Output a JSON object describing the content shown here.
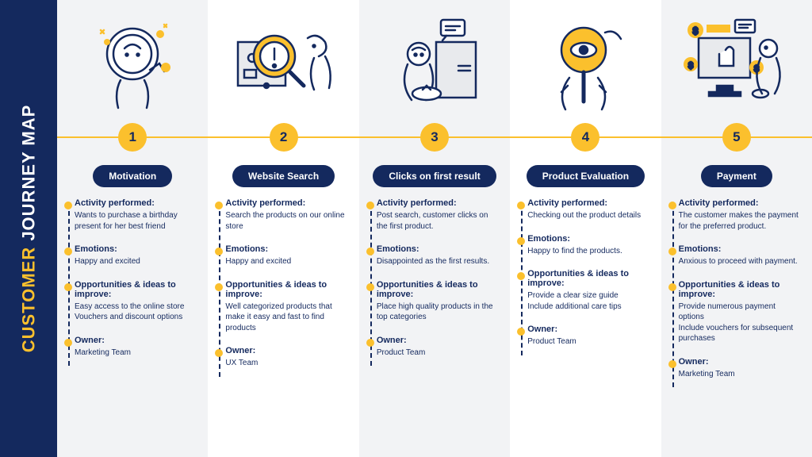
{
  "title": {
    "customer": "CUSTOMER",
    "journey": " JOURNEY MAP"
  },
  "colors": {
    "navy": "#14295e",
    "yellow": "#fbc02d",
    "grey": "#f2f3f5"
  },
  "labels": {
    "activity": "Activity performed:",
    "emotions": "Emotions:",
    "opportunities": "Opportunities & ideas to improve:",
    "owner": "Owner:"
  },
  "stages": [
    {
      "num": "1",
      "title": "Motivation",
      "activity": "Wants to purchase a birthday present for her best friend",
      "emotions": "Happy and excited",
      "opportunities": "Easy access to the online store\nVouchers and discount options",
      "owner": "Marketing Team"
    },
    {
      "num": "2",
      "title": "Website Search",
      "activity": "Search the products on our online store",
      "emotions": "Happy and excited",
      "opportunities": "Well categorized products that make it easy and fast to find products",
      "owner": "UX Team"
    },
    {
      "num": "3",
      "title": "Clicks on first result",
      "activity": "Post search, customer clicks on the first product.",
      "emotions": "Disappointed as the first results.",
      "opportunities": "Place high quality products in the top categories",
      "owner": "Product Team"
    },
    {
      "num": "4",
      "title": "Product Evaluation",
      "activity": "Checking out the product details",
      "emotions": "Happy to find the products.",
      "opportunities": "Provide a clear size guide\nInclude additional care tips",
      "owner": "Product Team"
    },
    {
      "num": "5",
      "title": "Payment",
      "activity": "The customer makes the payment for the preferred product.",
      "emotions": "Anxious to proceed with payment.",
      "opportunities": "Provide numerous payment options\nInclude vouchers for subsequent purchases",
      "owner": "Marketing Team"
    }
  ]
}
